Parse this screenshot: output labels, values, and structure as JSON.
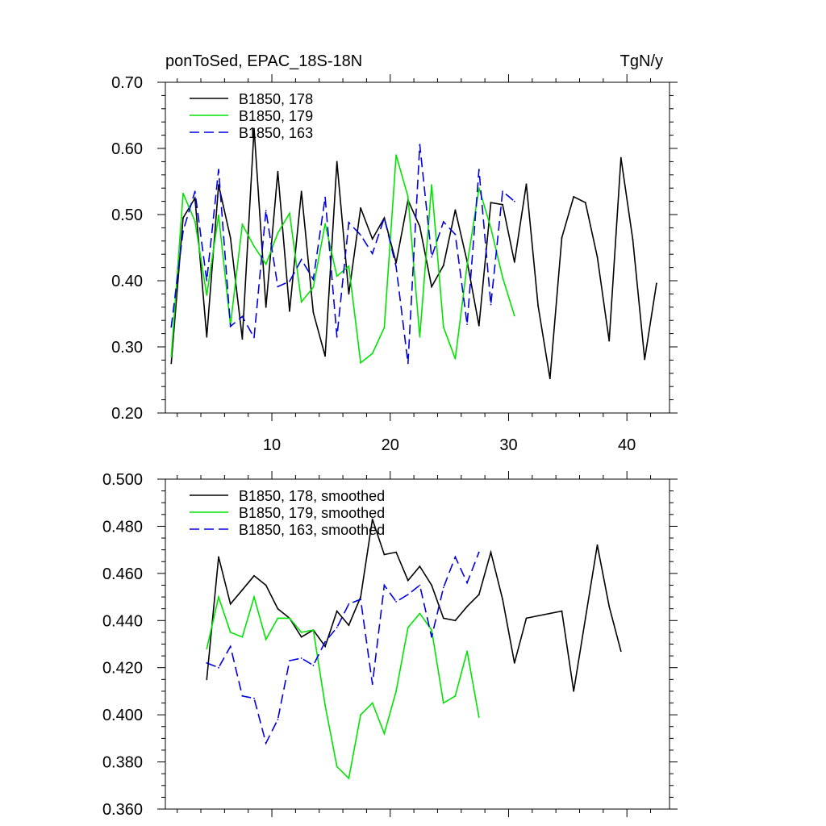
{
  "chart_data": [
    {
      "type": "line",
      "title_left": "ponToSed, EPAC_18S-18N",
      "title_right": "TgN/y",
      "xlabel": "",
      "ylabel": "",
      "xlim": [
        1.0,
        43.6
      ],
      "ylim": [
        0.2,
        0.7
      ],
      "xticks": [
        10,
        20,
        30,
        40
      ],
      "yticks": [
        0.2,
        0.3,
        0.4,
        0.5,
        0.6,
        0.7
      ],
      "ytick_labels": [
        "0.20",
        "0.30",
        "0.40",
        "0.50",
        "0.60",
        "0.70"
      ],
      "xticks_labeled": true,
      "legend_position": "top-left",
      "series": [
        {
          "name": "B1850, 178",
          "color": "#000000",
          "dash": "solid",
          "x": [
            1.5,
            2.5,
            3.5,
            4.5,
            5.5,
            6.5,
            7.5,
            8.5,
            9.5,
            10.5,
            11.5,
            12.5,
            13.5,
            14.5,
            15.5,
            16.5,
            17.5,
            18.5,
            19.5,
            20.5,
            21.5,
            22.5,
            23.5,
            24.5,
            25.5,
            26.5,
            27.5,
            28.5,
            29.5,
            30.5,
            31.5,
            32.5,
            33.5,
            34.5,
            35.5,
            36.5,
            37.5,
            38.5,
            39.5,
            40.5,
            41.5,
            42.5
          ],
          "values": [
            0.275,
            0.495,
            0.525,
            0.315,
            0.545,
            0.465,
            0.312,
            0.63,
            0.36,
            0.565,
            0.354,
            0.535,
            0.352,
            0.286,
            0.58,
            0.38,
            0.51,
            0.463,
            0.495,
            0.427,
            0.522,
            0.482,
            0.391,
            0.423,
            0.507,
            0.429,
            0.332,
            0.518,
            0.515,
            0.428,
            0.546,
            0.362,
            0.252,
            0.465,
            0.527,
            0.518,
            0.436,
            0.309,
            0.586,
            0.462,
            0.281,
            0.396
          ]
        },
        {
          "name": "B1850, 179",
          "color": "#00e400",
          "dash": "solid",
          "x": [
            1.5,
            2.5,
            3.5,
            4.5,
            5.5,
            6.5,
            7.5,
            8.5,
            9.5,
            10.5,
            11.5,
            12.5,
            13.5,
            14.5,
            15.5,
            16.5,
            17.5,
            18.5,
            19.5,
            20.5,
            21.5,
            22.5,
            23.5,
            24.5,
            25.5,
            26.5,
            27.5,
            28.5,
            29.5,
            30.5
          ],
          "values": [
            0.285,
            0.532,
            0.49,
            0.378,
            0.499,
            0.333,
            0.485,
            0.452,
            0.425,
            0.472,
            0.502,
            0.368,
            0.39,
            0.486,
            0.407,
            0.422,
            0.276,
            0.29,
            0.329,
            0.59,
            0.527,
            0.315,
            0.545,
            0.33,
            0.282,
            0.424,
            0.54,
            0.48,
            0.405,
            0.347
          ]
        },
        {
          "name": "B1850, 163",
          "color": "#0000e0",
          "dash": "dashed",
          "x": [
            1.5,
            2.5,
            3.5,
            4.5,
            5.5,
            6.5,
            7.5,
            8.5,
            9.5,
            10.5,
            11.5,
            12.5,
            13.5,
            14.5,
            15.5,
            16.5,
            17.5,
            18.5,
            19.5,
            20.5,
            21.5,
            22.5,
            23.5,
            24.5,
            25.5,
            26.5,
            27.5,
            28.5,
            29.5,
            30.5
          ],
          "values": [
            0.33,
            0.475,
            0.535,
            0.4,
            0.568,
            0.331,
            0.346,
            0.314,
            0.506,
            0.391,
            0.399,
            0.432,
            0.402,
            0.526,
            0.315,
            0.488,
            0.469,
            0.441,
            0.495,
            0.421,
            0.275,
            0.606,
            0.436,
            0.489,
            0.47,
            0.334,
            0.568,
            0.364,
            0.535,
            0.52
          ]
        }
      ]
    },
    {
      "type": "line",
      "title_left": "",
      "title_right": "",
      "xlabel": "",
      "ylabel": "",
      "xlim": [
        1.0,
        43.6
      ],
      "ylim": [
        0.36,
        0.5
      ],
      "xticks": [
        10,
        20,
        30,
        40
      ],
      "yticks": [
        0.36,
        0.38,
        0.4,
        0.42,
        0.44,
        0.46,
        0.48,
        0.5
      ],
      "ytick_labels": [
        "0.360",
        "0.380",
        "0.400",
        "0.420",
        "0.440",
        "0.460",
        "0.480",
        "0.500"
      ],
      "xticks_labeled": false,
      "legend_position": "top-left",
      "series": [
        {
          "name": "B1850, 178, smoothed",
          "color": "#000000",
          "dash": "solid",
          "x": [
            4.5,
            5.5,
            6.5,
            7.5,
            8.5,
            9.5,
            10.5,
            11.5,
            12.5,
            13.5,
            14.5,
            15.5,
            16.5,
            17.5,
            18.5,
            19.5,
            20.5,
            21.5,
            22.5,
            23.5,
            24.5,
            25.5,
            26.5,
            27.5,
            28.5,
            29.5,
            30.5,
            31.5,
            32.5,
            33.5,
            34.5,
            35.5,
            36.5,
            37.5,
            38.5,
            39.5
          ],
          "values": [
            0.415,
            0.467,
            0.447,
            0.453,
            0.459,
            0.455,
            0.445,
            0.441,
            0.433,
            0.436,
            0.429,
            0.444,
            0.438,
            0.45,
            0.483,
            0.468,
            0.469,
            0.457,
            0.463,
            0.455,
            0.441,
            0.44,
            0.446,
            0.451,
            0.469,
            0.449,
            0.422,
            0.441,
            0.442,
            0.443,
            0.444,
            0.41,
            0.441,
            0.472,
            0.446,
            0.427
          ]
        },
        {
          "name": "B1850, 179, smoothed",
          "color": "#00e400",
          "dash": "solid",
          "x": [
            4.5,
            5.5,
            6.5,
            7.5,
            8.5,
            9.5,
            10.5,
            11.5,
            12.5,
            13.5,
            14.5,
            15.5,
            16.5,
            17.5,
            18.5,
            19.5,
            20.5,
            21.5,
            22.5,
            23.5,
            24.5,
            25.5,
            26.5,
            27.5
          ],
          "values": [
            0.428,
            0.45,
            0.435,
            0.433,
            0.45,
            0.432,
            0.441,
            0.441,
            0.435,
            0.436,
            0.404,
            0.378,
            0.373,
            0.4,
            0.405,
            0.392,
            0.41,
            0.437,
            0.443,
            0.436,
            0.405,
            0.408,
            0.427,
            0.399
          ]
        },
        {
          "name": "B1850, 163, smoothed",
          "color": "#0000e0",
          "dash": "dashed",
          "x": [
            4.5,
            5.5,
            6.5,
            7.5,
            8.5,
            9.5,
            10.5,
            11.5,
            12.5,
            13.5,
            14.5,
            15.5,
            16.5,
            17.5,
            18.5,
            19.5,
            20.5,
            21.5,
            22.5,
            23.5,
            24.5,
            25.5,
            26.5,
            27.5
          ],
          "values": [
            0.422,
            0.42,
            0.429,
            0.408,
            0.407,
            0.388,
            0.398,
            0.423,
            0.424,
            0.421,
            0.431,
            0.437,
            0.447,
            0.449,
            0.413,
            0.455,
            0.448,
            0.451,
            0.455,
            0.433,
            0.454,
            0.467,
            0.456,
            0.469
          ]
        }
      ]
    }
  ]
}
